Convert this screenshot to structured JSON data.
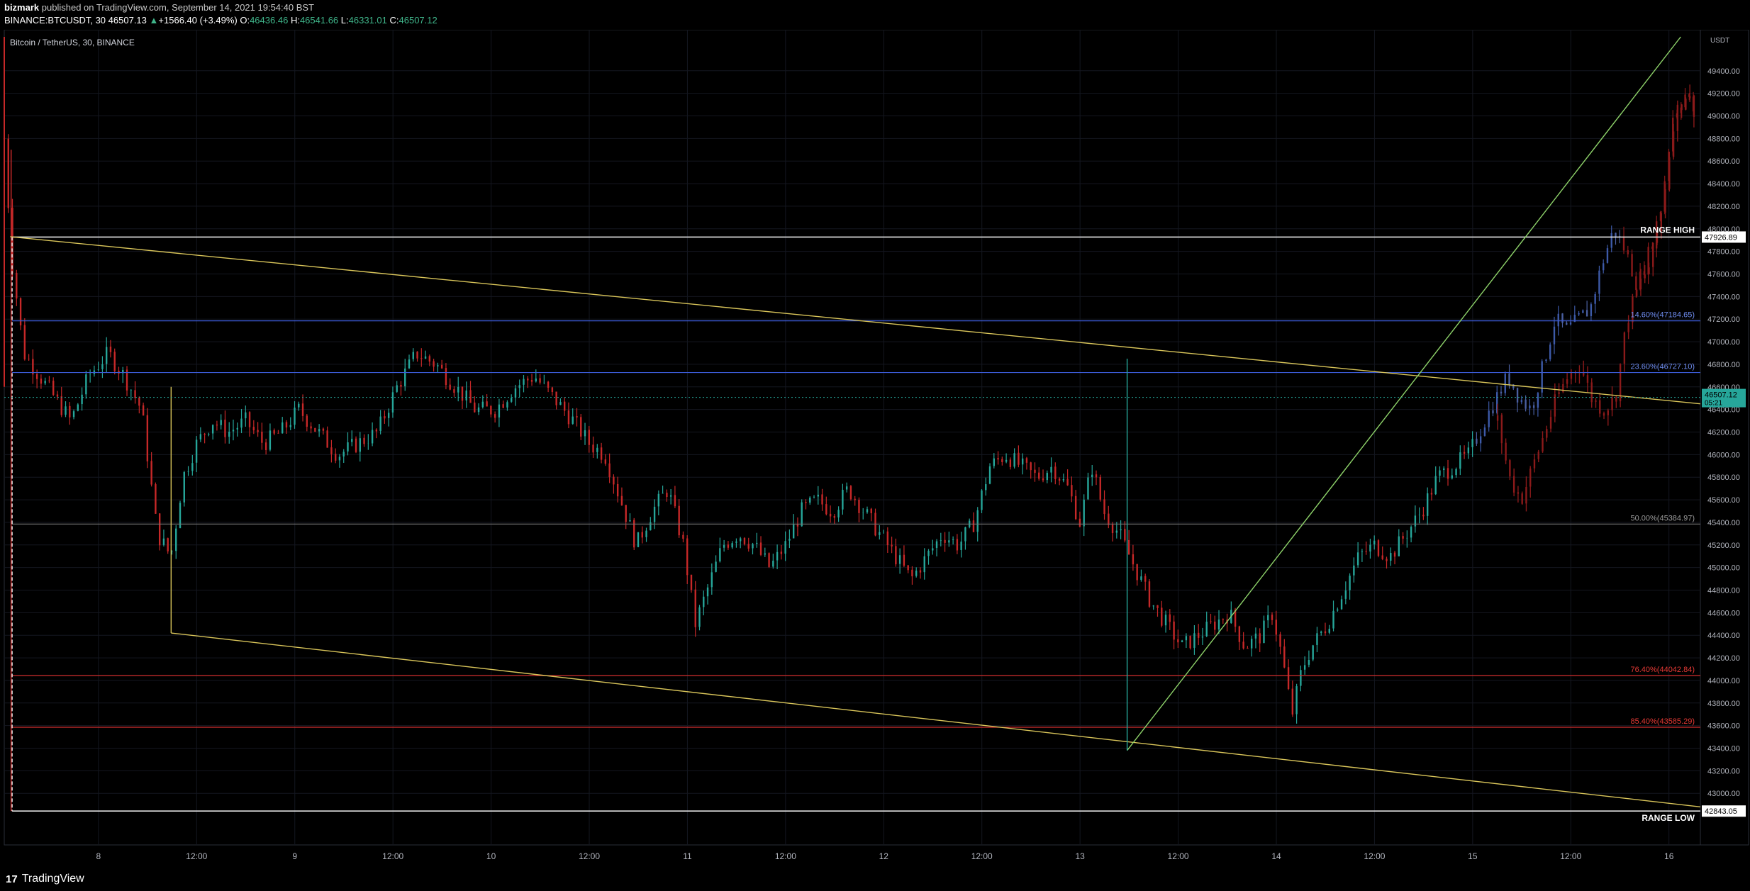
{
  "header": {
    "author": "bizmark",
    "published_text": "published on TradingView.com, September 14, 2021 19:54:40 BST",
    "symbol_line": "BINANCE:BTCUSDT, 30",
    "last_price": "46507.13",
    "change_arrow": "▲",
    "change": "+1566.40 (+3.49%)",
    "o_label": "O:",
    "o_value": "46436.46",
    "h_label": "H:",
    "h_value": "46541.66",
    "l_label": "L:",
    "l_value": "46331.01",
    "c_label": "C:",
    "c_value": "46507.12"
  },
  "footer": {
    "logo_glyph": "17",
    "brand": "TradingView"
  },
  "colors": {
    "up": "#26a69a",
    "down": "#c62828",
    "blue_candle": "#3d5aa8",
    "dark_red": "#8b1a1a",
    "range_line": "#e6e6e6",
    "fib_blue": "#3c5bd6",
    "fib_red": "#d32f2f",
    "fib_gray": "#777777",
    "trend_yellow": "#d9c55a",
    "trend_green": "#8ed36a",
    "price_tag": "#26a69a"
  },
  "chart_data": {
    "type": "candlestick",
    "title": "Bitcoin / TetherUS, 30, BINANCE",
    "currency": "USDT",
    "ylim": [
      42700,
      49700
    ],
    "y_ticks": [
      43000,
      43200,
      43400,
      43600,
      43800,
      44000,
      44200,
      44400,
      44600,
      44800,
      45000,
      45200,
      45400,
      45600,
      45800,
      46000,
      46200,
      46400,
      46600,
      46800,
      47000,
      47200,
      47400,
      47600,
      47800,
      48000,
      48200,
      48400,
      48600,
      48800,
      49000,
      49200,
      49400
    ],
    "x_ticks": [
      {
        "t": 1.0,
        "label": "8"
      },
      {
        "t": 1.5,
        "label": "12:00"
      },
      {
        "t": 2.0,
        "label": "9"
      },
      {
        "t": 2.5,
        "label": "12:00"
      },
      {
        "t": 3.0,
        "label": "10"
      },
      {
        "t": 3.5,
        "label": "12:00"
      },
      {
        "t": 4.0,
        "label": "11"
      },
      {
        "t": 4.5,
        "label": "12:00"
      },
      {
        "t": 5.0,
        "label": "12"
      },
      {
        "t": 5.5,
        "label": "12:00"
      },
      {
        "t": 6.0,
        "label": "13"
      },
      {
        "t": 6.5,
        "label": "12:00"
      },
      {
        "t": 7.0,
        "label": "14"
      },
      {
        "t": 7.5,
        "label": "12:00"
      },
      {
        "t": 8.0,
        "label": "15"
      },
      {
        "t": 8.5,
        "label": "12:00"
      },
      {
        "t": 9.0,
        "label": "16"
      }
    ],
    "xlim_days": [
      0.52,
      9.16
    ],
    "horizontal_levels": [
      {
        "name": "range-high",
        "price": 47926.89,
        "label": "RANGE HIGH",
        "tag": "47926.89",
        "style": "range"
      },
      {
        "name": "fib-14-6",
        "price": 47184.65,
        "label": "14.60%(47184.65)",
        "style": "fib_blue"
      },
      {
        "name": "fib-23-6",
        "price": 46727.1,
        "label": "23.60%(46727.10)",
        "style": "fib_blue"
      },
      {
        "name": "fib-50",
        "price": 45384.97,
        "label": "50.00%(45384.97)",
        "style": "fib_gray"
      },
      {
        "name": "fib-76-4",
        "price": 44042.84,
        "label": "76.40%(44042.84)",
        "style": "fib_red"
      },
      {
        "name": "fib-85-4",
        "price": 43585.29,
        "label": "85.40%(43585.29)",
        "style": "fib_red"
      },
      {
        "name": "range-low",
        "price": 42843.05,
        "label": "RANGE LOW",
        "tag": "42843.05",
        "style": "range"
      }
    ],
    "current_price": {
      "value": "46507.12",
      "countdown": "05:21",
      "price": 46507.12
    },
    "trendlines": [
      {
        "name": "upper-wedge",
        "from": [
          0.55,
          47930
        ],
        "to": [
          9.16,
          46450
        ],
        "color": "trend_yellow"
      },
      {
        "name": "lower-wedge",
        "from": [
          1.37,
          44420
        ],
        "to": [
          9.16,
          42880
        ],
        "color": "trend_yellow"
      },
      {
        "name": "breakout-line",
        "from": [
          6.24,
          43380
        ],
        "to": [
          9.06,
          49700
        ],
        "color": "trend_green"
      }
    ],
    "price_path": [
      [
        0.52,
        48800
      ],
      [
        0.56,
        47700
      ],
      [
        0.62,
        46900
      ],
      [
        0.7,
        46700
      ],
      [
        0.78,
        46500
      ],
      [
        0.86,
        46300
      ],
      [
        0.95,
        46700
      ],
      [
        1.05,
        46900
      ],
      [
        1.13,
        46700
      ],
      [
        1.22,
        46400
      ],
      [
        1.3,
        45300
      ],
      [
        1.37,
        45100
      ],
      [
        1.43,
        45800
      ],
      [
        1.5,
        46100
      ],
      [
        1.58,
        46300
      ],
      [
        1.66,
        46200
      ],
      [
        1.75,
        46300
      ],
      [
        1.84,
        46100
      ],
      [
        1.93,
        46200
      ],
      [
        2.02,
        46400
      ],
      [
        2.12,
        46200
      ],
      [
        2.22,
        46000
      ],
      [
        2.32,
        46100
      ],
      [
        2.42,
        46200
      ],
      [
        2.52,
        46600
      ],
      [
        2.62,
        46900
      ],
      [
        2.72,
        46800
      ],
      [
        2.82,
        46600
      ],
      [
        2.92,
        46400
      ],
      [
        3.02,
        46400
      ],
      [
        3.12,
        46600
      ],
      [
        3.22,
        46700
      ],
      [
        3.32,
        46500
      ],
      [
        3.42,
        46300
      ],
      [
        3.5,
        46100
      ],
      [
        3.58,
        46000
      ],
      [
        3.66,
        45600
      ],
      [
        3.74,
        45200
      ],
      [
        3.82,
        45500
      ],
      [
        3.9,
        45700
      ],
      [
        3.98,
        45200
      ],
      [
        4.04,
        44500
      ],
      [
        4.1,
        44800
      ],
      [
        4.18,
        45200
      ],
      [
        4.26,
        45300
      ],
      [
        4.34,
        45200
      ],
      [
        4.42,
        45000
      ],
      [
        4.5,
        45200
      ],
      [
        4.58,
        45500
      ],
      [
        4.66,
        45600
      ],
      [
        4.74,
        45500
      ],
      [
        4.82,
        45700
      ],
      [
        4.9,
        45500
      ],
      [
        4.98,
        45300
      ],
      [
        5.06,
        45100
      ],
      [
        5.14,
        44900
      ],
      [
        5.22,
        45100
      ],
      [
        5.3,
        45300
      ],
      [
        5.38,
        45200
      ],
      [
        5.46,
        45400
      ],
      [
        5.54,
        45900
      ],
      [
        5.62,
        46000
      ],
      [
        5.7,
        45900
      ],
      [
        5.78,
        45800
      ],
      [
        5.86,
        45900
      ],
      [
        5.94,
        45700
      ],
      [
        6.0,
        45400
      ],
      [
        6.06,
        45900
      ],
      [
        6.12,
        45500
      ],
      [
        6.2,
        45300
      ],
      [
        6.28,
        45000
      ],
      [
        6.36,
        44700
      ],
      [
        6.44,
        44500
      ],
      [
        6.52,
        44300
      ],
      [
        6.6,
        44400
      ],
      [
        6.68,
        44500
      ],
      [
        6.76,
        44600
      ],
      [
        6.84,
        44300
      ],
      [
        6.92,
        44400
      ],
      [
        6.98,
        44600
      ],
      [
        7.03,
        44200
      ],
      [
        7.08,
        43700
      ],
      [
        7.13,
        44100
      ],
      [
        7.18,
        44300
      ],
      [
        7.26,
        44500
      ],
      [
        7.34,
        44800
      ],
      [
        7.42,
        45100
      ],
      [
        7.5,
        45200
      ],
      [
        7.58,
        45100
      ],
      [
        7.66,
        45300
      ],
      [
        7.74,
        45500
      ],
      [
        7.82,
        45800
      ],
      [
        7.9,
        45900
      ],
      [
        7.98,
        46000
      ],
      [
        8.06,
        46300
      ],
      [
        8.12,
        46500
      ],
      [
        8.18,
        46700
      ],
      [
        8.24,
        46500
      ],
      [
        8.3,
        46400
      ],
      [
        8.36,
        46800
      ],
      [
        8.42,
        47200
      ],
      [
        8.48,
        47100
      ],
      [
        8.54,
        47200
      ],
      [
        8.6,
        47300
      ],
      [
        8.66,
        47700
      ],
      [
        8.72,
        48000
      ],
      [
        8.78,
        47800
      ],
      [
        8.84,
        47500
      ],
      [
        8.9,
        47800
      ],
      [
        8.96,
        48200
      ],
      [
        9.02,
        49000
      ],
      [
        9.08,
        49200
      ],
      [
        9.14,
        49000
      ]
    ],
    "red_overlay_path": [
      [
        8.12,
        46300
      ],
      [
        8.18,
        45800
      ],
      [
        8.24,
        45600
      ],
      [
        8.3,
        45900
      ],
      [
        8.36,
        46200
      ],
      [
        8.42,
        46500
      ],
      [
        8.48,
        46700
      ],
      [
        8.54,
        46800
      ],
      [
        8.6,
        46500
      ],
      [
        8.66,
        46400
      ],
      [
        8.72,
        46500
      ],
      [
        8.78,
        47200
      ],
      [
        8.84,
        47500
      ],
      [
        8.9,
        47700
      ],
      [
        8.96,
        48200
      ],
      [
        9.02,
        49000
      ],
      [
        9.08,
        49200
      ],
      [
        9.14,
        49000
      ]
    ]
  }
}
